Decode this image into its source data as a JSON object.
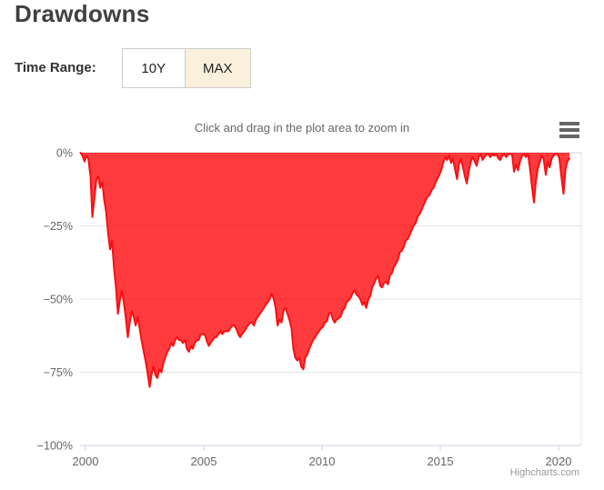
{
  "page": {
    "title": "Drawdowns"
  },
  "time_range": {
    "label": "Time Range:",
    "options": [
      {
        "label": "10Y",
        "active": false
      },
      {
        "label": "MAX",
        "active": true
      }
    ]
  },
  "chart": {
    "subtitle": "Click and drag in the plot area to zoom in",
    "credit": "Highcharts.com",
    "menu_icon": "hamburger-icon"
  },
  "colors": {
    "title_text": "#404040",
    "label_text": "#333333",
    "axis_text": "#666666",
    "grid_line": "#e6e6e6",
    "zero_line": "#d0d0d0",
    "axis_line": "#ccd6eb",
    "credit_text": "#999999",
    "button_active_bg": "#faf0dc",
    "button_border": "#cccccc",
    "area_red": "#ff0004",
    "line_red": "#fb0e11"
  },
  "chart_data": {
    "type": "area",
    "title": "",
    "subtitle": "Click and drag in the plot area to zoom in",
    "series_name": "Drawdown",
    "unit": "%",
    "xlim": [
      1999.75,
      2020.96
    ],
    "ylim": [
      -100,
      0
    ],
    "grid": "horizontal",
    "legend": "none",
    "x_ticks": [
      2000,
      2005,
      2010,
      2015,
      2020
    ],
    "x_tick_labels": [
      "2000",
      "2005",
      "2010",
      "2015",
      "2020"
    ],
    "y_ticks": [
      0,
      -25,
      -50,
      -75,
      -100
    ],
    "y_tick_labels": [
      "0%",
      "−25%",
      "−50%",
      "−75%",
      "−100%"
    ],
    "area_opacity": 0.77,
    "points": [
      [
        1999.79,
        0
      ],
      [
        1999.87,
        -1
      ],
      [
        1999.96,
        -3
      ],
      [
        2000.04,
        -1
      ],
      [
        2000.12,
        -2
      ],
      [
        2000.21,
        -8
      ],
      [
        2000.29,
        -22
      ],
      [
        2000.37,
        -16
      ],
      [
        2000.46,
        -9
      ],
      [
        2000.54,
        -8
      ],
      [
        2000.62,
        -12
      ],
      [
        2000.71,
        -10
      ],
      [
        2000.79,
        -16
      ],
      [
        2000.87,
        -20
      ],
      [
        2000.96,
        -28
      ],
      [
        2001.04,
        -33
      ],
      [
        2001.12,
        -30
      ],
      [
        2001.21,
        -40
      ],
      [
        2001.29,
        -46
      ],
      [
        2001.37,
        -55
      ],
      [
        2001.46,
        -50
      ],
      [
        2001.54,
        -47
      ],
      [
        2001.62,
        -51
      ],
      [
        2001.71,
        -57
      ],
      [
        2001.79,
        -63
      ],
      [
        2001.87,
        -58
      ],
      [
        2001.96,
        -54
      ],
      [
        2002.04,
        -56
      ],
      [
        2002.12,
        -59
      ],
      [
        2002.21,
        -56
      ],
      [
        2002.29,
        -60
      ],
      [
        2002.37,
        -64
      ],
      [
        2002.46,
        -68
      ],
      [
        2002.54,
        -71
      ],
      [
        2002.62,
        -75
      ],
      [
        2002.71,
        -80
      ],
      [
        2002.79,
        -76
      ],
      [
        2002.87,
        -73
      ],
      [
        2002.96,
        -76
      ],
      [
        2003.04,
        -77
      ],
      [
        2003.12,
        -74
      ],
      [
        2003.21,
        -75
      ],
      [
        2003.29,
        -72
      ],
      [
        2003.37,
        -70
      ],
      [
        2003.46,
        -68
      ],
      [
        2003.54,
        -67
      ],
      [
        2003.62,
        -65
      ],
      [
        2003.71,
        -66
      ],
      [
        2003.79,
        -64
      ],
      [
        2003.87,
        -63
      ],
      [
        2003.96,
        -64
      ],
      [
        2004.04,
        -64
      ],
      [
        2004.12,
        -65
      ],
      [
        2004.21,
        -64
      ],
      [
        2004.29,
        -67
      ],
      [
        2004.37,
        -68
      ],
      [
        2004.46,
        -66
      ],
      [
        2004.54,
        -67
      ],
      [
        2004.62,
        -65
      ],
      [
        2004.71,
        -64
      ],
      [
        2004.79,
        -64
      ],
      [
        2004.87,
        -62
      ],
      [
        2004.96,
        -62
      ],
      [
        2005.04,
        -62
      ],
      [
        2005.12,
        -64
      ],
      [
        2005.21,
        -66
      ],
      [
        2005.29,
        -65
      ],
      [
        2005.37,
        -64
      ],
      [
        2005.46,
        -63
      ],
      [
        2005.54,
        -63
      ],
      [
        2005.62,
        -62
      ],
      [
        2005.71,
        -61
      ],
      [
        2005.79,
        -62
      ],
      [
        2005.87,
        -61
      ],
      [
        2005.96,
        -61
      ],
      [
        2006.04,
        -61
      ],
      [
        2006.12,
        -60
      ],
      [
        2006.21,
        -59
      ],
      [
        2006.29,
        -59
      ],
      [
        2006.37,
        -60
      ],
      [
        2006.46,
        -62
      ],
      [
        2006.54,
        -63
      ],
      [
        2006.62,
        -62
      ],
      [
        2006.71,
        -61
      ],
      [
        2006.79,
        -60
      ],
      [
        2006.87,
        -59
      ],
      [
        2006.96,
        -58
      ],
      [
        2007.04,
        -58
      ],
      [
        2007.12,
        -59
      ],
      [
        2007.21,
        -57
      ],
      [
        2007.29,
        -56
      ],
      [
        2007.37,
        -55
      ],
      [
        2007.46,
        -54
      ],
      [
        2007.54,
        -53
      ],
      [
        2007.62,
        -52
      ],
      [
        2007.71,
        -51
      ],
      [
        2007.79,
        -50
      ],
      [
        2007.87,
        -48
      ],
      [
        2007.96,
        -50
      ],
      [
        2008.04,
        -53
      ],
      [
        2008.12,
        -59
      ],
      [
        2008.21,
        -57
      ],
      [
        2008.29,
        -58
      ],
      [
        2008.37,
        -54
      ],
      [
        2008.46,
        -53
      ],
      [
        2008.54,
        -55
      ],
      [
        2008.62,
        -57
      ],
      [
        2008.71,
        -60
      ],
      [
        2008.79,
        -67
      ],
      [
        2008.87,
        -70
      ],
      [
        2008.96,
        -71
      ],
      [
        2009.04,
        -70
      ],
      [
        2009.12,
        -73
      ],
      [
        2009.21,
        -74
      ],
      [
        2009.29,
        -70
      ],
      [
        2009.37,
        -69
      ],
      [
        2009.46,
        -67
      ],
      [
        2009.54,
        -65.5
      ],
      [
        2009.62,
        -64
      ],
      [
        2009.71,
        -63
      ],
      [
        2009.79,
        -62
      ],
      [
        2009.87,
        -61
      ],
      [
        2009.96,
        -60
      ],
      [
        2010.04,
        -59.5
      ],
      [
        2010.12,
        -58
      ],
      [
        2010.21,
        -57.5
      ],
      [
        2010.29,
        -55
      ],
      [
        2010.37,
        -54.5
      ],
      [
        2010.46,
        -57
      ],
      [
        2010.54,
        -58
      ],
      [
        2010.62,
        -57
      ],
      [
        2010.71,
        -56.5
      ],
      [
        2010.79,
        -56
      ],
      [
        2010.87,
        -54
      ],
      [
        2010.96,
        -53
      ],
      [
        2011.04,
        -51
      ],
      [
        2011.12,
        -50.5
      ],
      [
        2011.21,
        -49.5
      ],
      [
        2011.29,
        -48
      ],
      [
        2011.37,
        -47
      ],
      [
        2011.46,
        -48.5
      ],
      [
        2011.54,
        -49
      ],
      [
        2011.62,
        -50
      ],
      [
        2011.71,
        -52
      ],
      [
        2011.79,
        -51
      ],
      [
        2011.87,
        -53
      ],
      [
        2011.96,
        -50
      ],
      [
        2012.04,
        -49
      ],
      [
        2012.12,
        -46
      ],
      [
        2012.21,
        -44.5
      ],
      [
        2012.29,
        -43
      ],
      [
        2012.37,
        -42
      ],
      [
        2012.46,
        -45.5
      ],
      [
        2012.54,
        -46
      ],
      [
        2012.62,
        -44.5
      ],
      [
        2012.71,
        -44
      ],
      [
        2012.79,
        -45
      ],
      [
        2012.87,
        -42
      ],
      [
        2012.96,
        -41
      ],
      [
        2013.04,
        -39
      ],
      [
        2013.12,
        -38
      ],
      [
        2013.21,
        -36.5
      ],
      [
        2013.29,
        -34
      ],
      [
        2013.37,
        -33.5
      ],
      [
        2013.46,
        -32
      ],
      [
        2013.54,
        -30
      ],
      [
        2013.62,
        -29.5
      ],
      [
        2013.71,
        -28
      ],
      [
        2013.79,
        -26.5
      ],
      [
        2013.87,
        -25
      ],
      [
        2013.96,
        -24
      ],
      [
        2014.04,
        -22
      ],
      [
        2014.12,
        -21
      ],
      [
        2014.21,
        -19.5
      ],
      [
        2014.29,
        -18
      ],
      [
        2014.37,
        -16.5
      ],
      [
        2014.46,
        -15
      ],
      [
        2014.54,
        -14.5
      ],
      [
        2014.62,
        -13
      ],
      [
        2014.71,
        -12
      ],
      [
        2014.79,
        -10.5
      ],
      [
        2014.87,
        -9
      ],
      [
        2014.96,
        -7.5
      ],
      [
        2015.04,
        -6
      ],
      [
        2015.12,
        -3.5
      ],
      [
        2015.21,
        -1.5
      ],
      [
        2015.29,
        -2.5
      ],
      [
        2015.37,
        -1
      ],
      [
        2015.46,
        -3.5
      ],
      [
        2015.54,
        -2
      ],
      [
        2015.62,
        -5.5
      ],
      [
        2015.71,
        -9
      ],
      [
        2015.79,
        -4
      ],
      [
        2015.87,
        -2
      ],
      [
        2015.96,
        -5
      ],
      [
        2016.04,
        -8
      ],
      [
        2016.12,
        -10.5
      ],
      [
        2016.21,
        -6
      ],
      [
        2016.29,
        -3
      ],
      [
        2016.37,
        -1.5
      ],
      [
        2016.46,
        -3
      ],
      [
        2016.54,
        -4.5
      ],
      [
        2016.62,
        -1.5
      ],
      [
        2016.71,
        -0.5
      ],
      [
        2016.79,
        -2.5
      ],
      [
        2016.87,
        -1.5
      ],
      [
        2016.96,
        -0.5
      ],
      [
        2017.04,
        -0.5
      ],
      [
        2017.12,
        -1.5
      ],
      [
        2017.21,
        -0.5
      ],
      [
        2017.29,
        -1
      ],
      [
        2017.37,
        -0.5
      ],
      [
        2017.46,
        -2
      ],
      [
        2017.54,
        -2.5
      ],
      [
        2017.62,
        -1
      ],
      [
        2017.71,
        -0.5
      ],
      [
        2017.79,
        -1.5
      ],
      [
        2017.87,
        -0.5
      ],
      [
        2017.96,
        -0.5
      ],
      [
        2018.04,
        -0.5
      ],
      [
        2018.12,
        -6.5
      ],
      [
        2018.21,
        -4
      ],
      [
        2018.29,
        -6
      ],
      [
        2018.37,
        -3
      ],
      [
        2018.46,
        -1
      ],
      [
        2018.54,
        -0.5
      ],
      [
        2018.62,
        -1.5
      ],
      [
        2018.71,
        -0.5
      ],
      [
        2018.79,
        -5
      ],
      [
        2018.87,
        -11
      ],
      [
        2018.96,
        -17
      ],
      [
        2019.04,
        -10
      ],
      [
        2019.12,
        -5.5
      ],
      [
        2019.21,
        -3
      ],
      [
        2019.29,
        -1
      ],
      [
        2019.37,
        -2
      ],
      [
        2019.46,
        -7.5
      ],
      [
        2019.54,
        -3
      ],
      [
        2019.62,
        -5
      ],
      [
        2019.71,
        -2
      ],
      [
        2019.79,
        -1
      ],
      [
        2019.87,
        -0.5
      ],
      [
        2019.96,
        -0.5
      ],
      [
        2020.04,
        -2
      ],
      [
        2020.12,
        -8
      ],
      [
        2020.21,
        -14
      ],
      [
        2020.29,
        -6
      ],
      [
        2020.37,
        -3
      ],
      [
        2020.46,
        -2
      ]
    ]
  }
}
